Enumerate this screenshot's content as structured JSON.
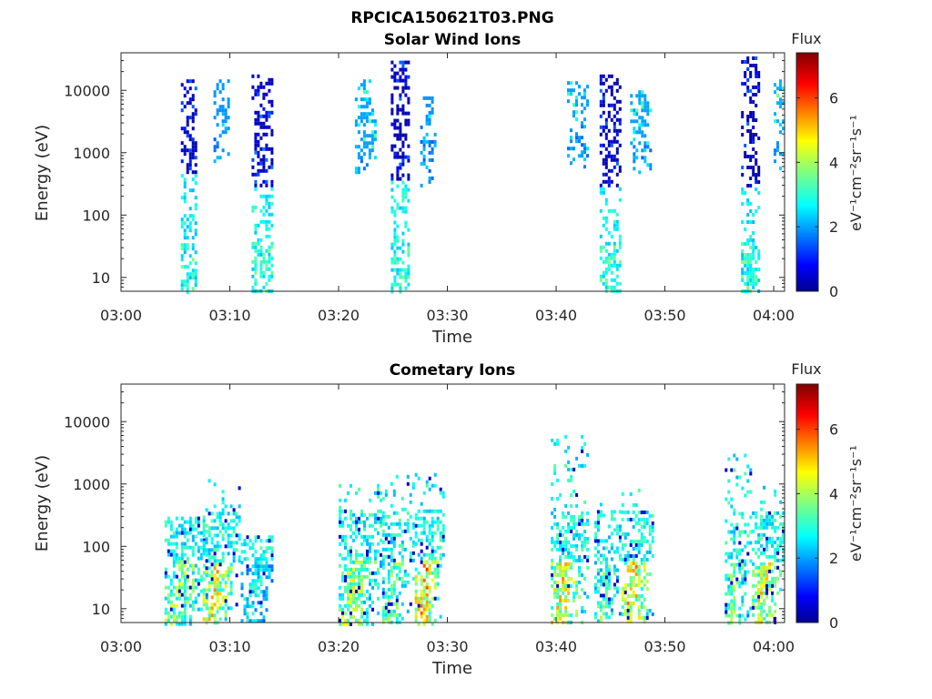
{
  "figure": {
    "title": "RPCICA150621T03.PNG"
  },
  "chart_data": [
    {
      "type": "heatmap",
      "title": "Solar Wind Ions",
      "xlabel": "Time",
      "ylabel": "Energy (eV)",
      "xlim": [
        "03:00",
        "04:01"
      ],
      "x_ticks": [
        "03:00",
        "03:10",
        "03:20",
        "03:30",
        "03:40",
        "03:50",
        "04:00"
      ],
      "ylim": [
        6,
        40000
      ],
      "yscale": "log",
      "y_ticks": [
        "10",
        "100",
        "1000",
        "10000"
      ],
      "colorbar": {
        "title": "Flux",
        "label": "eV⁻¹cm⁻²sr⁻¹s⁻¹",
        "range": [
          0,
          7.4
        ],
        "ticks": [
          "0",
          "2",
          "4",
          "6"
        ],
        "colormap": "jet"
      },
      "bursts": [
        {
          "start": "03:05.5",
          "end": "03:07.0",
          "e_low": 6,
          "e_high": 15000,
          "core_low": 500,
          "core_value": 0.4,
          "low_energy_value": 2.7
        },
        {
          "start": "03:08.5",
          "end": "03:10.0",
          "e_low": 700,
          "e_high": 15000,
          "core_low": 2000,
          "core_value": 2.0,
          "low_energy_value": 2.0
        },
        {
          "start": "03:12.0",
          "end": "03:13.8",
          "e_low": 6,
          "e_high": 18000,
          "core_low": 300,
          "core_value": 0.5,
          "low_energy_value": 2.8
        },
        {
          "start": "03:21.5",
          "end": "03:23.5",
          "e_low": 500,
          "e_high": 15000,
          "core_low": 1000,
          "core_value": 2.1,
          "low_energy_value": 2.1
        },
        {
          "start": "03:24.8",
          "end": "03:26.5",
          "e_low": 6,
          "e_high": 30000,
          "core_low": 400,
          "core_value": 0.4,
          "low_energy_value": 2.8
        },
        {
          "start": "03:27.5",
          "end": "03:29.0",
          "e_low": 300,
          "e_high": 8000,
          "core_low": 3000,
          "core_value": 2.0,
          "low_energy_value": 2.0
        },
        {
          "start": "03:41.0",
          "end": "03:42.8",
          "e_low": 600,
          "e_high": 14000,
          "core_low": 3000,
          "core_value": 2.1,
          "low_energy_value": 2.1
        },
        {
          "start": "03:44.0",
          "end": "03:45.8",
          "e_low": 6,
          "e_high": 18000,
          "core_low": 300,
          "core_value": 0.4,
          "low_energy_value": 2.8
        },
        {
          "start": "03:46.8",
          "end": "03:48.8",
          "e_low": 500,
          "e_high": 10000,
          "core_low": 1500,
          "core_value": 2.1,
          "low_energy_value": 2.1
        },
        {
          "start": "03:57.0",
          "end": "03:58.6",
          "e_low": 6,
          "e_high": 35000,
          "core_low": 300,
          "core_value": 0.4,
          "low_energy_value": 2.7
        },
        {
          "start": "04:00.0",
          "end": "04:01.0",
          "e_low": 500,
          "e_high": 15000,
          "core_low": 2000,
          "core_value": 2.2,
          "low_energy_value": 2.2
        }
      ]
    },
    {
      "type": "heatmap",
      "title": "Cometary Ions",
      "xlabel": "Time",
      "ylabel": "Energy (eV)",
      "xlim": [
        "03:00",
        "04:01"
      ],
      "x_ticks": [
        "03:00",
        "03:10",
        "03:20",
        "03:30",
        "03:40",
        "03:50",
        "04:00"
      ],
      "ylim": [
        6,
        40000
      ],
      "yscale": "log",
      "y_ticks": [
        "10",
        "100",
        "1000",
        "10000"
      ],
      "colorbar": {
        "title": "Flux",
        "label": "eV⁻¹cm⁻²sr⁻¹s⁻¹",
        "range": [
          0,
          7.4
        ],
        "ticks": [
          "0",
          "2",
          "4",
          "6"
        ],
        "colormap": "jet"
      },
      "bursts": [
        {
          "start": "03:04.0",
          "end": "03:08.0",
          "e_low": 6,
          "e_high": 300,
          "peak_value": 4.8
        },
        {
          "start": "03:07.5",
          "end": "03:10.8",
          "e_low": 6,
          "e_high": 1200,
          "peak_value": 5.6
        },
        {
          "start": "03:11.0",
          "end": "03:13.8",
          "e_low": 6,
          "e_high": 150,
          "peak_value": 3.6
        },
        {
          "start": "03:20.0",
          "end": "03:24.0",
          "e_low": 6,
          "e_high": 1000,
          "peak_value": 5.0
        },
        {
          "start": "03:24.0",
          "end": "03:27.0",
          "e_low": 6,
          "e_high": 1400,
          "peak_value": 4.6
        },
        {
          "start": "03:27.0",
          "end": "03:29.6",
          "e_low": 6,
          "e_high": 1500,
          "peak_value": 6.3
        },
        {
          "start": "03:39.5",
          "end": "03:43.0",
          "e_low": 6,
          "e_high": 7000,
          "peak_value": 5.8
        },
        {
          "start": "03:43.5",
          "end": "03:46.0",
          "e_low": 6,
          "e_high": 500,
          "peak_value": 4.4
        },
        {
          "start": "03:46.0",
          "end": "03:49.0",
          "e_low": 6,
          "e_high": 1100,
          "peak_value": 6.0
        },
        {
          "start": "03:55.5",
          "end": "03:58.0",
          "e_low": 6,
          "e_high": 3500,
          "peak_value": 4.6
        },
        {
          "start": "03:58.0",
          "end": "04:01.0",
          "e_low": 6,
          "e_high": 1400,
          "peak_value": 5.5
        }
      ]
    }
  ]
}
